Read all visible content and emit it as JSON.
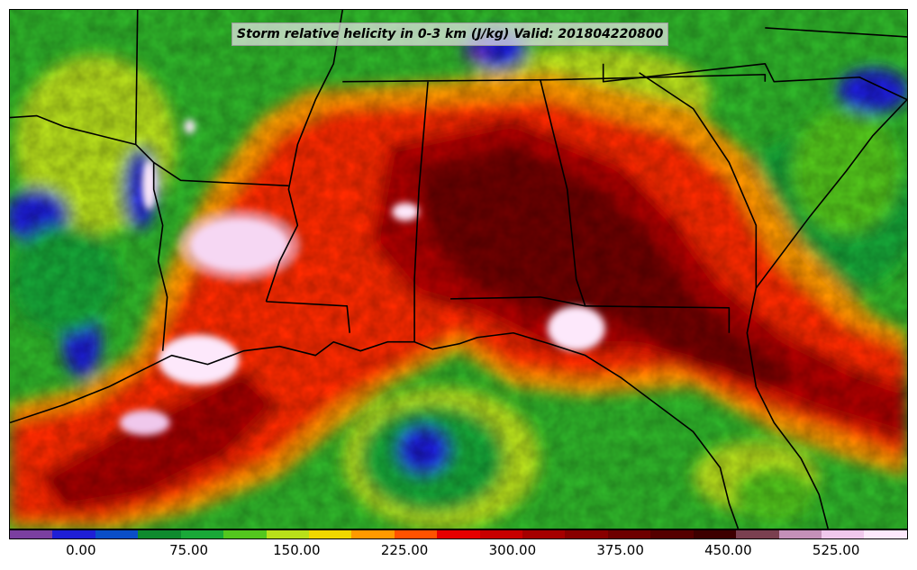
{
  "title": "Storm relative helicity in 0-3 km (J/kg) Valid: 201804220800",
  "colorbar": {
    "colors": [
      "#7b3fa0",
      "#1f1fd6",
      "#0a4ec8",
      "#0e8a2e",
      "#19a838",
      "#53c71e",
      "#b8e01a",
      "#f0d800",
      "#ff9a00",
      "#ff5200",
      "#e60000",
      "#c80000",
      "#a50000",
      "#880000",
      "#6e0000",
      "#550000",
      "#3d0000",
      "#7a4050",
      "#c490b8",
      "#f0c8ec",
      "#fde8fb"
    ],
    "ticks": [
      {
        "label": "0.00",
        "value": 0
      },
      {
        "label": "75.00",
        "value": 75
      },
      {
        "label": "150.00",
        "value": 150
      },
      {
        "label": "225.00",
        "value": 225
      },
      {
        "label": "300.00",
        "value": 300
      },
      {
        "label": "375.00",
        "value": 375
      },
      {
        "label": "450.00",
        "value": 450
      },
      {
        "label": "525.00",
        "value": 525
      }
    ],
    "min": -50,
    "max": 575
  },
  "map": {
    "region": "Southeastern United States",
    "variable": "Storm relative helicity in 0-3 km",
    "units": "J/kg",
    "valid_time": "201804220800"
  }
}
